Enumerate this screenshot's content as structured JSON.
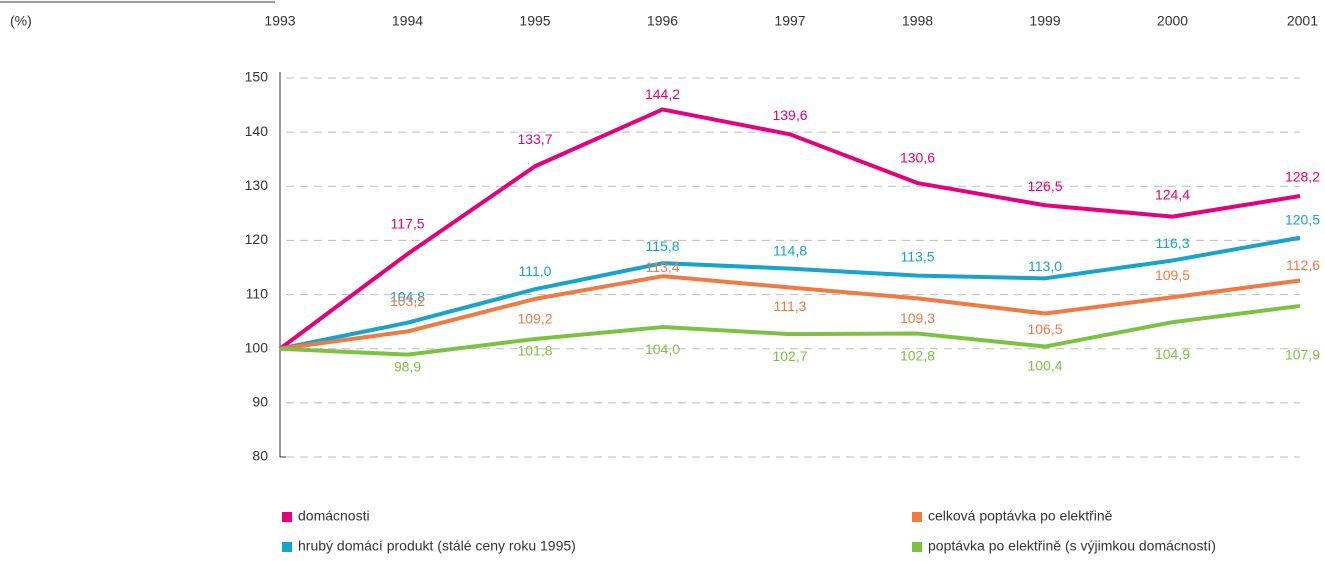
{
  "chart_data": {
    "type": "line",
    "y_unit": "(%)",
    "x": [
      "1993",
      "1994",
      "1995",
      "1996",
      "1997",
      "1998",
      "1999",
      "2000",
      "2001"
    ],
    "ylim": [
      80,
      150
    ],
    "yticks": [
      80,
      90,
      100,
      110,
      120,
      130,
      140,
      150
    ],
    "grid": true,
    "series": [
      {
        "name": "domácnosti",
        "color": "#e6007e",
        "values": [
          100,
          117.5,
          133.7,
          144.2,
          139.6,
          130.6,
          126.5,
          124.4,
          128.2
        ],
        "value_labels": [
          null,
          "117,5",
          "133,7",
          "144,2",
          "139,6",
          "130,6",
          "126,5",
          "124,4",
          "128,2"
        ]
      },
      {
        "name": "hrubý domácí produkt (stálé ceny roku 1995)",
        "color": "#16a3cc",
        "values": [
          100,
          104.8,
          111.0,
          115.8,
          114.8,
          113.5,
          113.0,
          116.3,
          120.5
        ],
        "value_labels": [
          null,
          "104,8",
          "111,0",
          "115,8",
          "114,8",
          "113,5",
          "113,0",
          "116,3",
          "120,5"
        ]
      },
      {
        "name": "celková poptávka po elektřině",
        "color": "#f07a42",
        "values": [
          100,
          103.2,
          109.2,
          113.4,
          111.3,
          109.3,
          106.5,
          109.5,
          112.6
        ],
        "value_labels": [
          null,
          "103,2",
          "109,2",
          "113,4",
          "111,3",
          "109,3",
          "106,5",
          "109,5",
          "112,6"
        ]
      },
      {
        "name": "poptávka po elektřině (s výjimkou domácností)",
        "color": "#7cc242",
        "values": [
          100,
          98.9,
          101.8,
          104.0,
          102.7,
          102.8,
          100.4,
          104.9,
          107.9
        ],
        "value_labels": [
          null,
          "98,9",
          "101,8",
          "104,0",
          "102,7",
          "102,8",
          "100,4",
          "104,9",
          "107,9"
        ]
      }
    ]
  }
}
